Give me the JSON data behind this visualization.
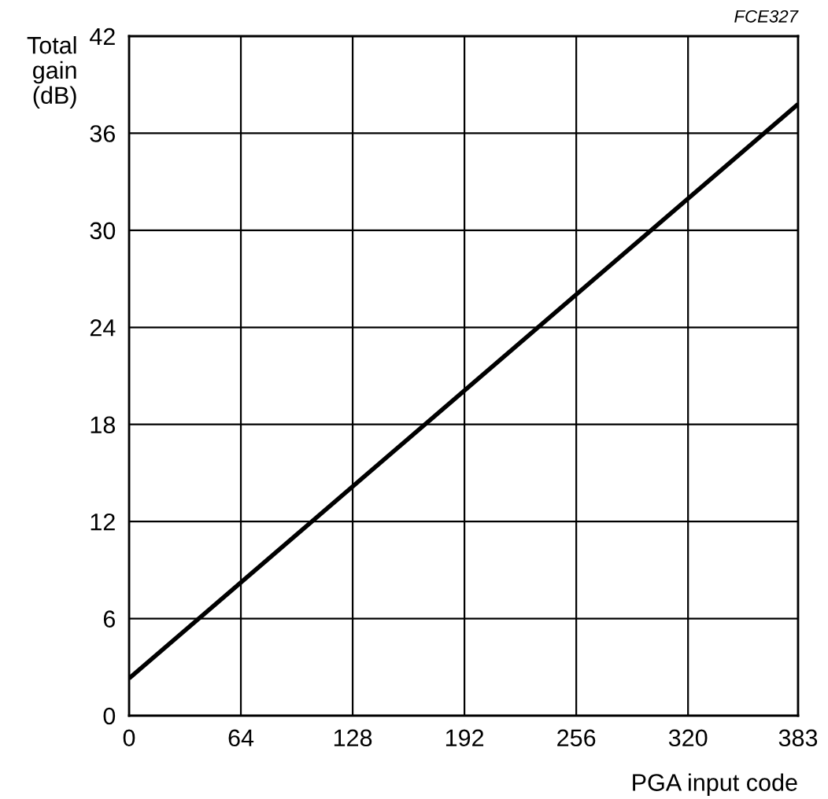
{
  "chart_data": {
    "type": "line",
    "x": [
      0,
      383
    ],
    "series": [
      {
        "color": "#000000",
        "values": [
          2.3,
          37.8
        ]
      }
    ],
    "xlabel": "PGA input code",
    "ylabel": "Total\ngain\n(dB)",
    "xlim": [
      0,
      383
    ],
    "xticks": [
      0,
      64,
      128,
      192,
      256,
      320,
      383
    ],
    "ylim": [
      0,
      42
    ],
    "yticks": [
      0,
      6,
      12,
      18,
      24,
      30,
      36,
      42
    ],
    "grid": true,
    "marker": "none",
    "line_style": "solid",
    "annotations": [
      "FCE327"
    ]
  }
}
